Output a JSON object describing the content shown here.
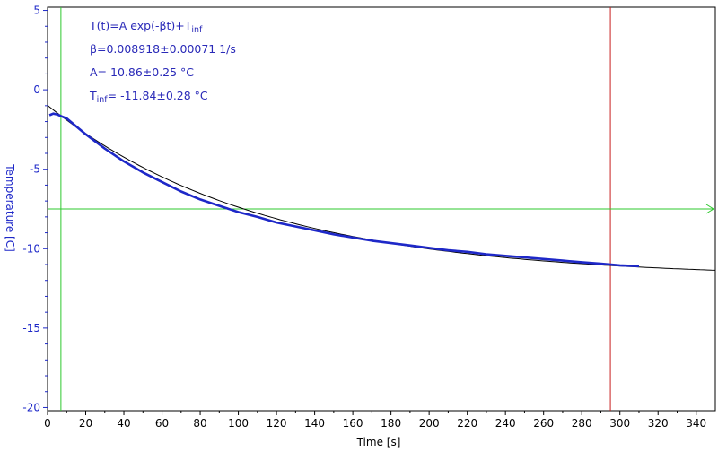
{
  "chart_data": {
    "type": "line",
    "xlabel": "Time [s]",
    "ylabel": "Temperature [C]",
    "xlim": [
      0,
      350
    ],
    "ylim": [
      -20.2,
      5.2
    ],
    "xticks": [
      0,
      20,
      40,
      60,
      80,
      100,
      120,
      140,
      160,
      180,
      200,
      220,
      240,
      260,
      280,
      300,
      320,
      340
    ],
    "yticks": [
      5,
      0,
      -5,
      -10,
      -15,
      -20
    ],
    "grid": false,
    "legend": "none",
    "fit_annotation": {
      "line1_main": "T(t)=A exp(-βt)+T",
      "line1_sub": "inf",
      "line2": "β=0.008918±0.00071 1/s",
      "line3": "A= 10.86±0.25 °C",
      "line4_main": "T",
      "line4_sub": "inf",
      "line4_rest": "= -11.84±0.28 °C"
    },
    "fit_params": {
      "A": 10.86,
      "beta": 0.008918,
      "T_inf": -11.84
    },
    "series": [
      {
        "kind": "measured",
        "color": "#1e28c8",
        "x": [
          1,
          3,
          5,
          7,
          10,
          15,
          20,
          30,
          40,
          50,
          60,
          70,
          80,
          90,
          100,
          110,
          120,
          130,
          140,
          150,
          160,
          170,
          180,
          190,
          200,
          210,
          220,
          230,
          240,
          250,
          260,
          270,
          280,
          290,
          300,
          310
        ],
        "y": [
          -1.6,
          -1.5,
          -1.55,
          -1.65,
          -1.8,
          -2.3,
          -2.8,
          -3.7,
          -4.5,
          -5.2,
          -5.8,
          -6.4,
          -6.9,
          -7.3,
          -7.7,
          -8.0,
          -8.35,
          -8.6,
          -8.85,
          -9.1,
          -9.3,
          -9.5,
          -9.65,
          -9.8,
          -9.95,
          -10.1,
          -10.2,
          -10.35,
          -10.45,
          -10.55,
          -10.65,
          -10.75,
          -10.85,
          -10.95,
          -11.05,
          -11.1
        ]
      },
      {
        "kind": "fit",
        "color": "#000000",
        "x_range": [
          0,
          350
        ]
      }
    ],
    "markers": {
      "vertical_green_x": 7,
      "vertical_red_x": 295,
      "horizontal_green_y": -7.5,
      "green_color": "#2ec82e",
      "red_color": "#c81e1e"
    },
    "axis_color": "#1e28c8"
  }
}
